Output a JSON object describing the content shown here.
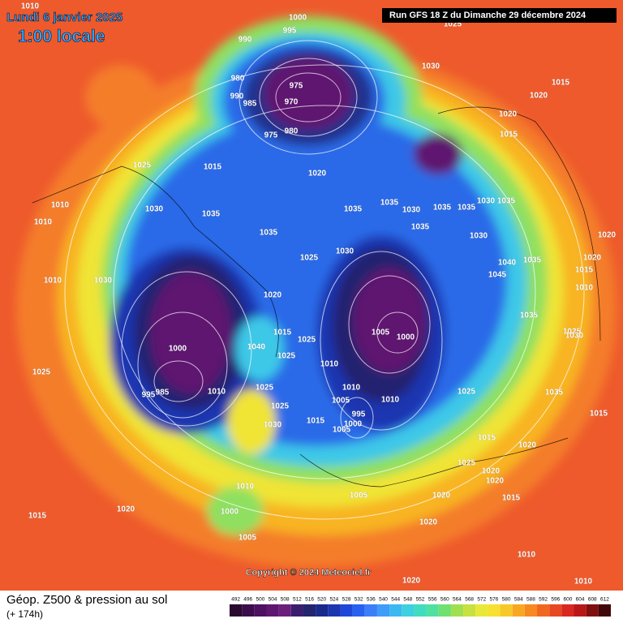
{
  "header": {
    "date": "Lundi 6 janvier 2025",
    "time": "1:00 locale",
    "run": "Run GFS 18 Z du Dimanche 29 décembre 2024"
  },
  "copyright": "Copyright © 2024 Meteociel.fr",
  "footer": {
    "title": "Géop. Z500 & pression au sol",
    "lead": "(+ 174h)"
  },
  "scale": {
    "labels": [
      "492",
      "496",
      "500",
      "504",
      "508",
      "512",
      "516",
      "520",
      "524",
      "528",
      "532",
      "536",
      "540",
      "544",
      "548",
      "552",
      "556",
      "560",
      "564",
      "568",
      "572",
      "576",
      "580",
      "584",
      "588",
      "592",
      "596",
      "600",
      "604",
      "608",
      "612"
    ],
    "colors": [
      "#2a0a2e",
      "#3d0c4a",
      "#4e1060",
      "#5e1670",
      "#6c1e7c",
      "#3b1d6e",
      "#24246f",
      "#1a2a8a",
      "#1c36b0",
      "#1f48d8",
      "#2860f0",
      "#3c7ef8",
      "#3f9cf8",
      "#3ab8f0",
      "#3cd0e0",
      "#40dcc0",
      "#50e0a0",
      "#70e070",
      "#a0e050",
      "#c8e040",
      "#e8e838",
      "#f8e030",
      "#f8c828",
      "#f8a820",
      "#f88820",
      "#f06820",
      "#e84820",
      "#d82820",
      "#b81818",
      "#801010",
      "#400808"
    ]
  },
  "map": {
    "isobar_labels": [
      "1010",
      "1000",
      "995",
      "990",
      "980",
      "975",
      "970",
      "990",
      "985",
      "975",
      "980",
      "1030",
      "1015",
      "1020",
      "1020",
      "1015",
      "1025",
      "1015",
      "1020",
      "1010",
      "1030",
      "1035",
      "1035",
      "1035",
      "1030",
      "1035",
      "1035",
      "1030",
      "1035",
      "1010",
      "1035",
      "1035",
      "1030",
      "1020",
      "1030",
      "1025",
      "1020",
      "1040",
      "1035",
      "1015",
      "1045",
      "1010",
      "1030",
      "1020",
      "1010",
      "1015",
      "1005",
      "1000",
      "1035",
      "1025",
      "1030",
      "1025",
      "1000",
      "1040",
      "1025",
      "1010",
      "1025",
      "1010",
      "1025",
      "1010",
      "1025",
      "1035",
      "995",
      "985",
      "1010",
      "1005",
      "1025",
      "995",
      "1015",
      "1030",
      "1015",
      "1000",
      "1005",
      "1015",
      "1020",
      "1025",
      "1020",
      "1020",
      "1010",
      "1005",
      "1020",
      "1015",
      "1000",
      "1020",
      "1015",
      "1020",
      "1005",
      "1010",
      "1020",
      "1010",
      "1025"
    ]
  }
}
